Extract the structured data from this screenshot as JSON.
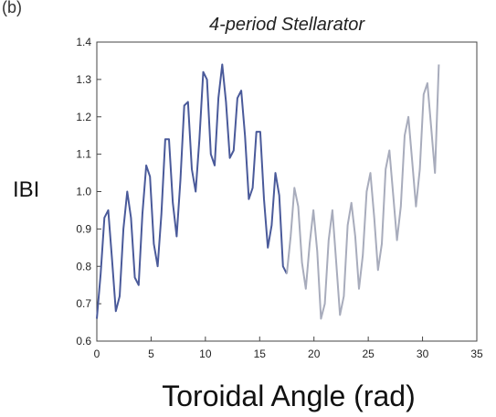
{
  "panel_label": "(b)",
  "chart_data": {
    "type": "line",
    "title": "4-period Stellarator",
    "xlabel": "Toroidal Angle (rad)",
    "ylabel": "IBI",
    "xlim": [
      0,
      35
    ],
    "ylim": [
      0.6,
      1.4
    ],
    "xticks": [
      "0",
      "5",
      "10",
      "15",
      "20",
      "25",
      "30",
      "35"
    ],
    "yticks": [
      "0.6",
      "0.7",
      "0.8",
      "0.9",
      "1.0",
      "1.1",
      "1.2",
      "1.3",
      "1.4"
    ],
    "grid": false,
    "legend": "none",
    "series": [
      {
        "color": "#4a5a9a",
        "x": [
          0.0,
          0.35,
          0.7,
          1.05,
          1.4,
          1.75,
          2.1,
          2.45,
          2.8,
          3.15,
          3.5,
          3.85,
          4.2,
          4.55,
          4.9,
          5.25,
          5.6,
          5.95,
          6.3,
          6.65,
          7.0,
          7.35,
          7.7,
          8.05,
          8.4,
          8.75,
          9.1,
          9.45,
          9.8,
          10.15,
          10.5,
          10.85,
          11.2,
          11.55,
          11.9,
          12.25,
          12.6,
          12.95,
          13.3,
          13.65,
          14.0,
          14.35,
          14.7,
          15.05,
          15.4,
          15.75,
          16.1,
          16.45,
          16.8,
          17.15,
          17.5
        ],
        "y": [
          0.66,
          0.78,
          0.93,
          0.95,
          0.82,
          0.68,
          0.72,
          0.9,
          1.0,
          0.93,
          0.77,
          0.75,
          0.94,
          1.07,
          1.04,
          0.86,
          0.8,
          0.94,
          1.14,
          1.14,
          0.97,
          0.88,
          1.03,
          1.23,
          1.24,
          1.06,
          1.0,
          1.14,
          1.32,
          1.3,
          1.1,
          1.07,
          1.25,
          1.34,
          1.24,
          1.09,
          1.11,
          1.25,
          1.27,
          1.15,
          0.98,
          1.01,
          1.16,
          1.16,
          0.98,
          0.85,
          0.91,
          1.05,
          0.99,
          0.8,
          0.78
        ]
      },
      {
        "color": "#a8acbc",
        "x": [
          17.5,
          17.85,
          18.2,
          18.55,
          18.9,
          19.25,
          19.6,
          19.95,
          20.3,
          20.65,
          21.0,
          21.35,
          21.7,
          22.05,
          22.4,
          22.75,
          23.1,
          23.45,
          23.8,
          24.15,
          24.5,
          24.85,
          25.2,
          25.55,
          25.9,
          26.25,
          26.6,
          26.95,
          27.3,
          27.65,
          28.0,
          28.35,
          28.7,
          29.05,
          29.4,
          29.75,
          30.1,
          30.45,
          30.8,
          31.15,
          31.5
        ],
        "y": [
          0.78,
          0.88,
          1.01,
          0.96,
          0.81,
          0.74,
          0.86,
          0.95,
          0.84,
          0.66,
          0.7,
          0.87,
          0.95,
          0.81,
          0.67,
          0.72,
          0.91,
          0.97,
          0.88,
          0.74,
          0.83,
          1.0,
          1.05,
          0.93,
          0.79,
          0.86,
          1.06,
          1.11,
          0.99,
          0.87,
          0.96,
          1.15,
          1.2,
          1.08,
          0.96,
          1.06,
          1.26,
          1.29,
          1.17,
          1.05,
          1.34
        ]
      }
    ]
  }
}
